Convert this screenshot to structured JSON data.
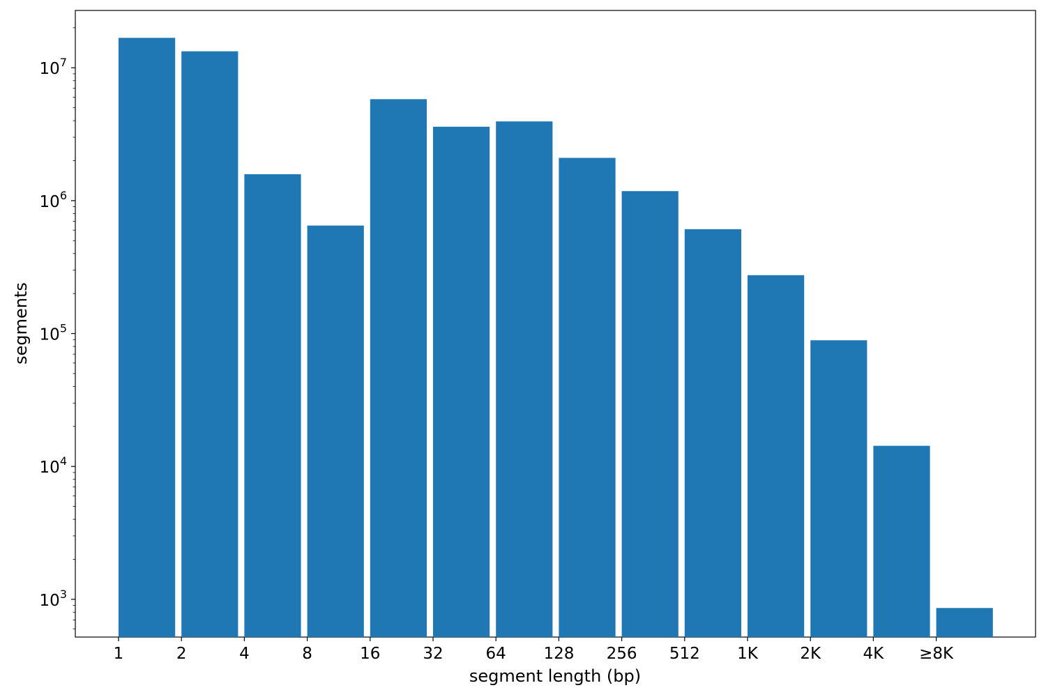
{
  "chart_data": {
    "type": "bar",
    "categories": [
      "1",
      "2",
      "4",
      "8",
      "16",
      "32",
      "64",
      "128",
      "256",
      "512",
      "1K",
      "2K",
      "4K",
      "≥8K"
    ],
    "values": [
      16800000,
      13300000,
      1580000,
      650000,
      5800000,
      3600000,
      3950000,
      2100000,
      1180000,
      610000,
      275000,
      89000,
      14300,
      860
    ],
    "xlabel": "segment length (bp)",
    "ylabel": "segments",
    "yscale": "log",
    "ylim": [
      520,
      27000000
    ],
    "ytick_values": [
      1000,
      10000,
      100000,
      1000000,
      10000000
    ],
    "ytick_exponents": [
      "3",
      "4",
      "5",
      "6",
      "7"
    ],
    "ytick_base": "10",
    "grid": false,
    "bar_color": "#1f77b4"
  }
}
